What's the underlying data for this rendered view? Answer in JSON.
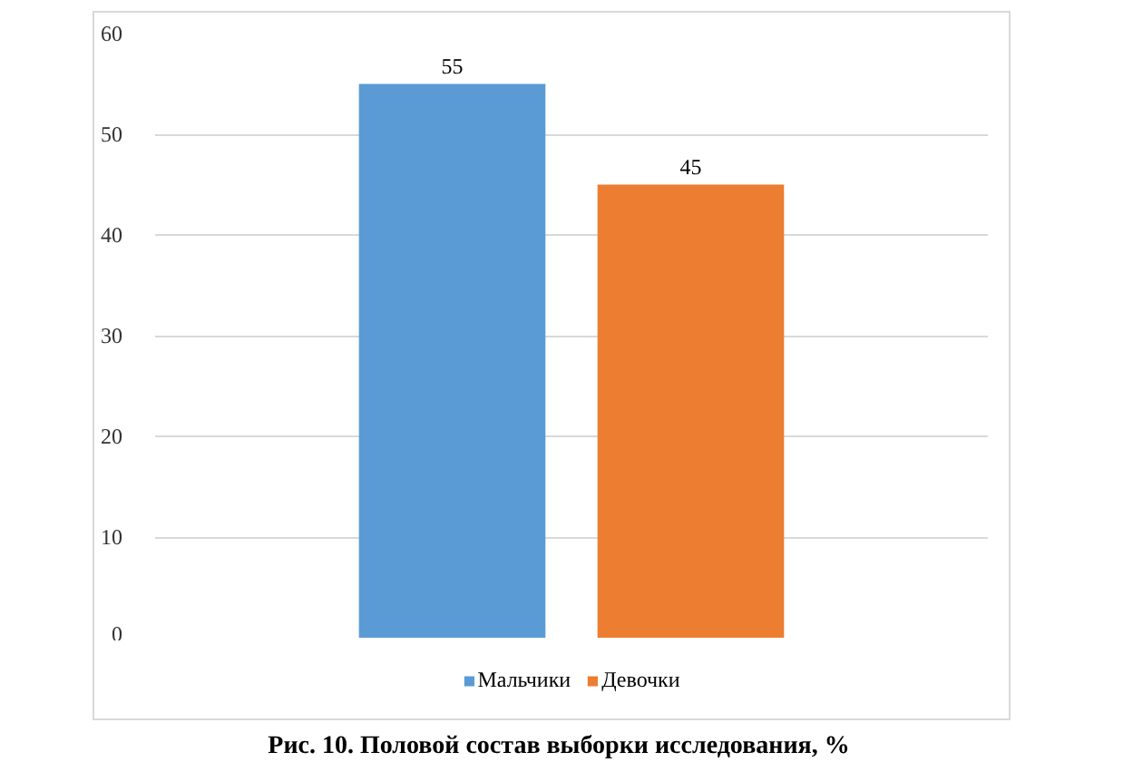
{
  "chart_data": {
    "type": "bar",
    "categories": [
      null
    ],
    "series": [
      {
        "name": "Мальчики",
        "color": "#5b9bd5",
        "values": [
          55
        ]
      },
      {
        "name": "Девочки",
        "color": "#ed7d31",
        "values": [
          45
        ]
      }
    ],
    "ylim": [
      0,
      60
    ],
    "yticks": [
      0,
      10,
      20,
      30,
      40,
      50,
      60
    ],
    "grid": "y",
    "legend": "bottom",
    "data_labels": true,
    "annotations": [
      "Рис. 10. Половой состав выборки исследования, %"
    ]
  }
}
